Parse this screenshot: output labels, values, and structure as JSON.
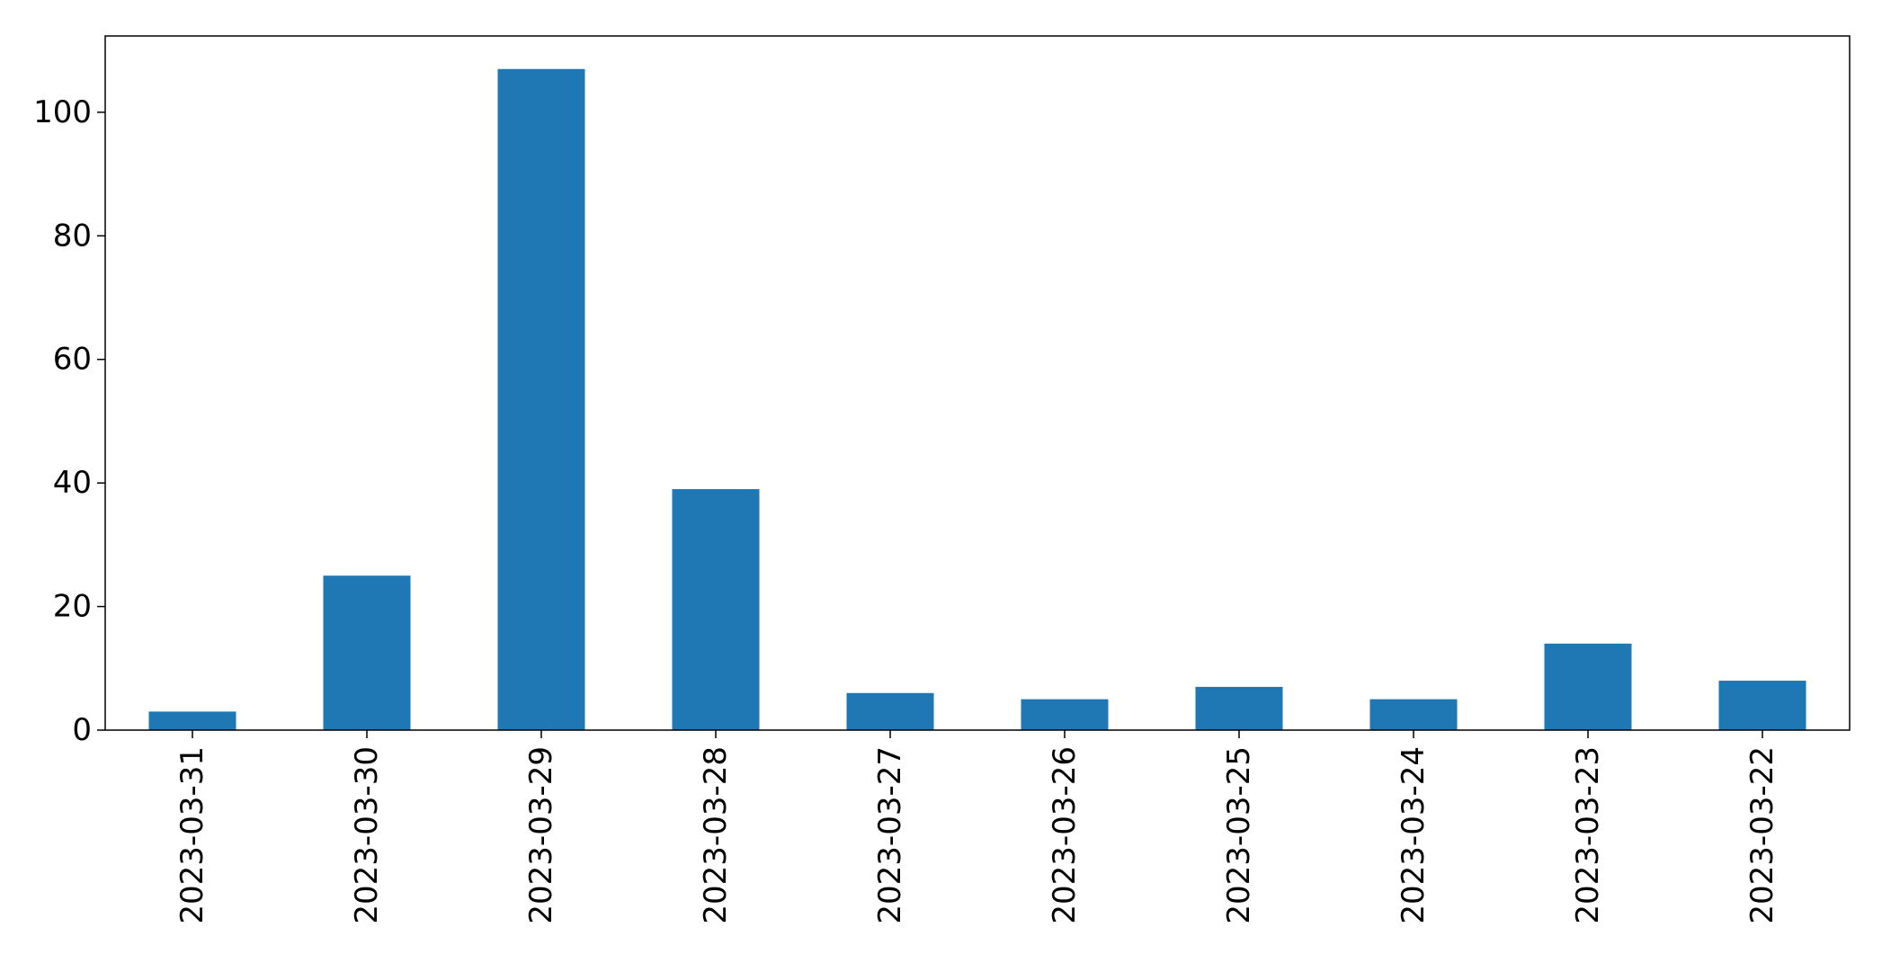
{
  "chart_data": {
    "type": "bar",
    "categories": [
      "2023-03-31",
      "2023-03-30",
      "2023-03-29",
      "2023-03-28",
      "2023-03-27",
      "2023-03-26",
      "2023-03-25",
      "2023-03-24",
      "2023-03-23",
      "2023-03-22"
    ],
    "values": [
      3,
      25,
      107,
      39,
      6,
      5,
      7,
      5,
      14,
      8
    ],
    "title": "",
    "xlabel": "",
    "ylabel": "",
    "ylim": [
      0,
      112.35
    ],
    "yticks": [
      0,
      20,
      40,
      60,
      80,
      100
    ],
    "grid": false,
    "legend": "none",
    "bar_color": "#1f77b4",
    "x_tick_rotation": "vertical"
  }
}
